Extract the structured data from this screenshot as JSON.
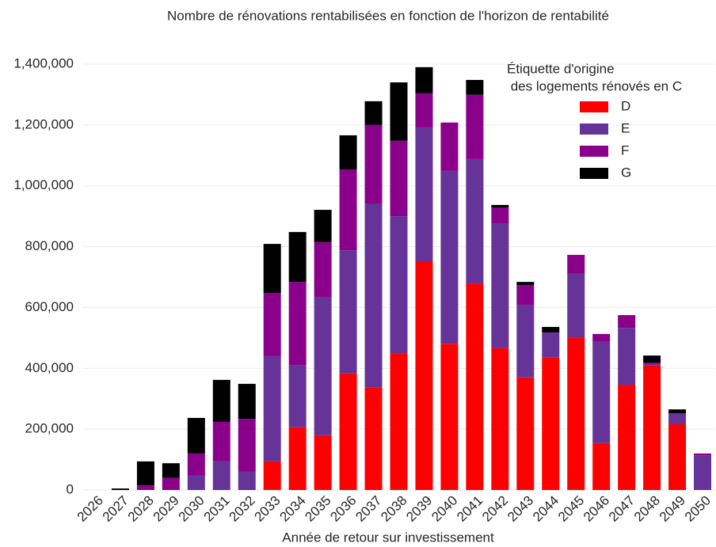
{
  "chart_data": {
    "type": "stacked_bar",
    "title": "Nombre de rénovations rentabilisées en fonction de l'horizon de rentabilité",
    "x_label": "Année de retour sur investissement",
    "legend_title": [
      "Étiquette d'origine",
      " des logements rénovés en C"
    ],
    "legend_position": "upper right",
    "categories": [
      "2026",
      "2027",
      "2028",
      "2029",
      "2030",
      "2031",
      "2032",
      "2033",
      "2034",
      "2035",
      "2036",
      "2037",
      "2038",
      "2039",
      "2040",
      "2041",
      "2042",
      "2043",
      "2044",
      "2045",
      "2046",
      "2047",
      "2048",
      "2049",
      "2050"
    ],
    "series": [
      {
        "name": "D",
        "color": "#ff0000",
        "values": [
          0,
          0,
          0,
          0,
          0,
          0,
          0,
          94000,
          206000,
          180000,
          383000,
          336000,
          450000,
          752000,
          481000,
          679000,
          466000,
          370000,
          435000,
          502000,
          154000,
          346000,
          409000,
          216000,
          0
        ]
      },
      {
        "name": "E",
        "color": "#663399",
        "values": [
          0,
          0,
          0,
          0,
          47000,
          94000,
          60000,
          346000,
          205000,
          455000,
          405000,
          606000,
          450000,
          440000,
          568000,
          409000,
          411000,
          239000,
          83000,
          211000,
          333000,
          187000,
          5000,
          34000,
          114000
        ]
      },
      {
        "name": "F",
        "color": "#8b008b",
        "values": [
          0,
          0,
          15000,
          40000,
          73000,
          130000,
          174000,
          208000,
          273000,
          180000,
          266000,
          258000,
          248000,
          112000,
          159000,
          211000,
          52000,
          65000,
          0,
          60000,
          26000,
          42000,
          5000,
          2000,
          6000
        ]
      },
      {
        "name": "G",
        "color": "#000000",
        "values": [
          0,
          5000,
          79000,
          48000,
          117000,
          138000,
          115000,
          161000,
          164000,
          106000,
          112000,
          78000,
          192000,
          86000,
          0,
          49000,
          8000,
          10000,
          18000,
          0,
          0,
          0,
          23000,
          13000,
          0
        ]
      }
    ],
    "ylim": [
      0,
      1400000
    ],
    "yticks": [
      0,
      {
        "value": 200000,
        "label": "200,000"
      },
      {
        "value": 400000,
        "label": "400,000"
      },
      {
        "value": 600000,
        "label": "600,000"
      },
      {
        "value": 800000,
        "label": "800,000"
      },
      {
        "value": 1000000,
        "label": "1,000,000"
      },
      {
        "value": 1200000,
        "label": "1,200,000"
      },
      {
        "value": 1400000,
        "label": "1,400,000"
      }
    ],
    "grid": true
  }
}
